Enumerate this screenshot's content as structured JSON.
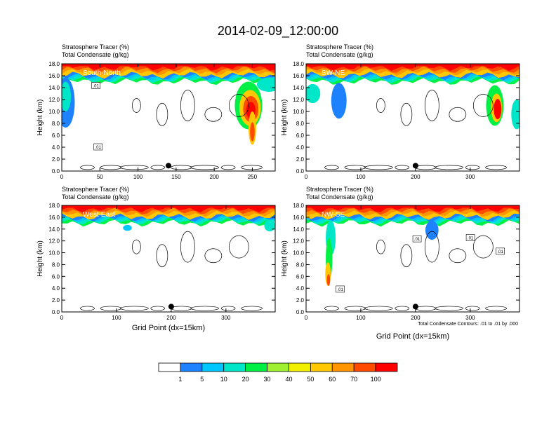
{
  "title": "2014-02-09_12:00:00",
  "colorbar": {
    "colors": [
      "#ffffff",
      "#1e82ff",
      "#00c8ff",
      "#00e6c8",
      "#00f046",
      "#a0f032",
      "#f0f000",
      "#ffc800",
      "#ff9600",
      "#ff4b00",
      "#ff0000"
    ],
    "labels": [
      "1",
      "5",
      "10",
      "20",
      "30",
      "40",
      "50",
      "60",
      "70",
      "100"
    ]
  },
  "footnote": "Total Condensate Contours: .01 to .01 by .000",
  "chart_data": [
    {
      "type": "heatmap",
      "name": "South-North",
      "title_line1": "Stratosphere Tracer   (%)",
      "title_line2": "Total Condensate   (g/kg)",
      "ylabel": "Height (km)",
      "xlabel": "",
      "xlim": [
        0,
        280
      ],
      "ylim": [
        0,
        18
      ],
      "xticks": [
        "0",
        "50",
        "100",
        "150",
        "200",
        "250"
      ],
      "xtick_values": [
        0,
        50,
        100,
        150,
        200,
        250
      ],
      "yticks": [
        "0.0",
        "2.0",
        "4.0",
        "6.0",
        "8.0",
        "10.0",
        "12.0",
        "14.0",
        "16.0",
        "18.0"
      ],
      "marker_x": 140,
      "contour_labels": [
        ".01",
        ".01"
      ]
    },
    {
      "type": "heatmap",
      "name": "SW-NE",
      "title_line1": "Stratosphere Tracer   (%)",
      "title_line2": "Total Condensate   (g/kg)",
      "ylabel": "Height (km)",
      "xlabel": "",
      "xlim": [
        0,
        390
      ],
      "ylim": [
        0,
        18
      ],
      "xticks": [
        "0",
        "100",
        "200",
        "300"
      ],
      "xtick_values": [
        0,
        100,
        200,
        300
      ],
      "yticks": [
        "0.0",
        "2.0",
        "4.0",
        "6.0",
        "8.0",
        "10.0",
        "12.0",
        "14.0",
        "16.0",
        "18.0"
      ],
      "marker_x": 200,
      "contour_labels": []
    },
    {
      "type": "heatmap",
      "name": "West-East",
      "title_line1": "Stratosphere Tracer   (%)",
      "title_line2": "Total Condensate   (g/kg)",
      "ylabel": "Height (km)",
      "xlabel": "Grid Point (dx=15km)",
      "xlim": [
        0,
        390
      ],
      "ylim": [
        0,
        18
      ],
      "xticks": [
        "0",
        "100",
        "200",
        "300"
      ],
      "xtick_values": [
        0,
        100,
        200,
        300
      ],
      "yticks": [
        "0.0",
        "2.0",
        "4.0",
        "6.0",
        "8.0",
        "10.0",
        "12.0",
        "14.0",
        "16.0",
        "18.0"
      ],
      "marker_x": 200,
      "contour_labels": []
    },
    {
      "type": "heatmap",
      "name": "NW-SE",
      "title_line1": "Stratosphere Tracer   (%)",
      "title_line2": "Total Condensate   (g/kg)",
      "ylabel": "Height (km)",
      "xlabel": "Grid Point (dx=15km)",
      "xlim": [
        0,
        390
      ],
      "ylim": [
        0,
        18
      ],
      "xticks": [
        "0",
        "100",
        "200",
        "300"
      ],
      "xtick_values": [
        0,
        100,
        200,
        300
      ],
      "yticks": [
        "0.0",
        "2.0",
        "4.0",
        "6.0",
        "8.0",
        "10.0",
        "12.0",
        "14.0",
        "16.0",
        "18.0"
      ],
      "marker_x": 200,
      "contour_labels": [
        ".01",
        ".01",
        ".01",
        ".01"
      ]
    }
  ]
}
